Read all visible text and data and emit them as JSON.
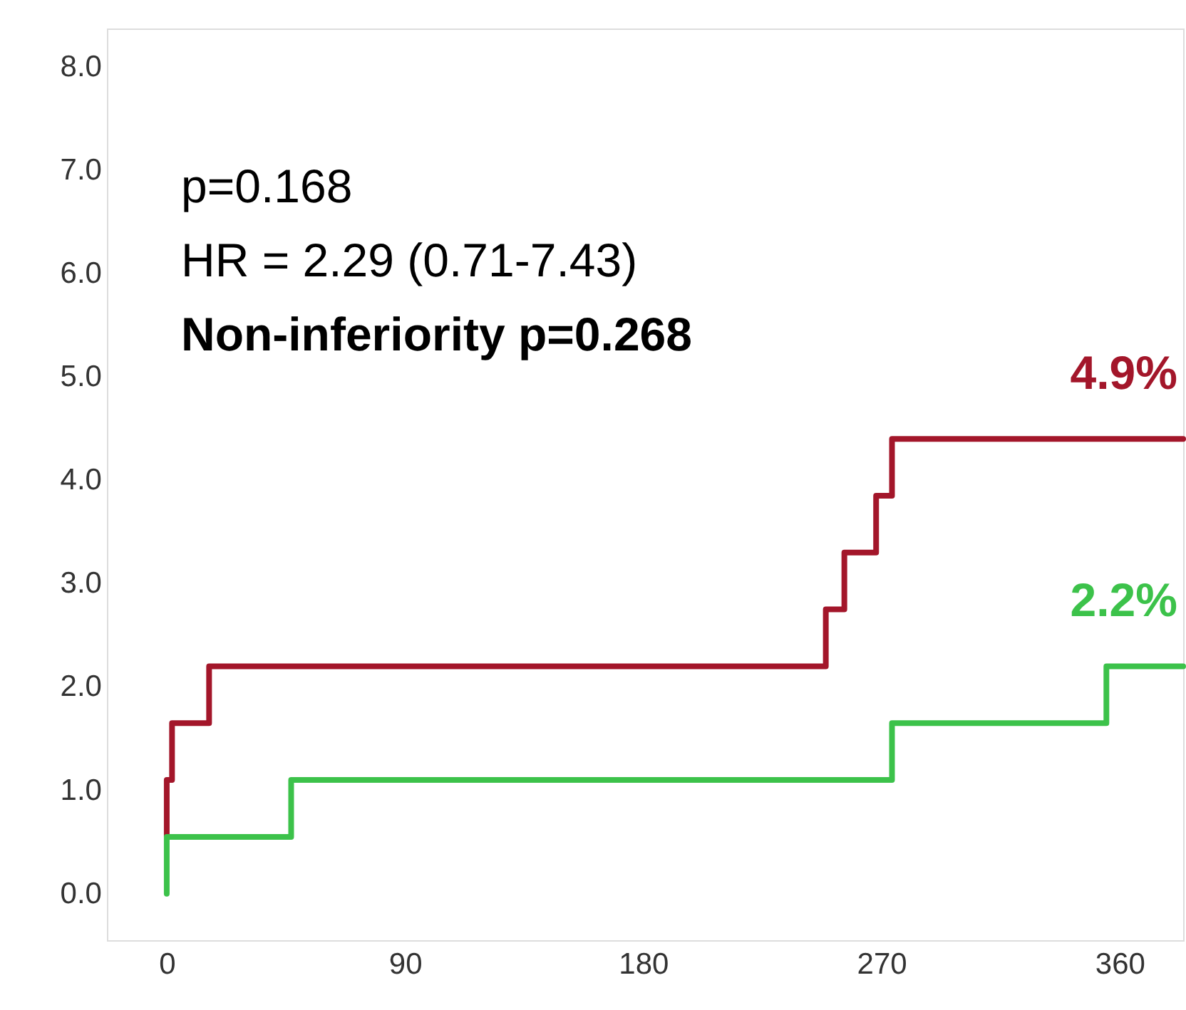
{
  "chart_data": {
    "type": "step",
    "series": [
      {
        "color": "#a3162a",
        "x": [
          0,
          0,
          2,
          16,
          249,
          256,
          268,
          274,
          384
        ],
        "values": [
          0.55,
          1.1,
          1.65,
          2.2,
          2.75,
          3.3,
          3.85,
          4.4,
          4.4
        ]
      },
      {
        "color": "#3cc24a",
        "x": [
          0,
          0,
          47,
          274,
          355,
          384
        ],
        "values": [
          0,
          0.55,
          1.1,
          1.65,
          2.2,
          2.2
        ]
      }
    ],
    "xlim": [
      -22.6,
      384
    ],
    "xticks": [
      0,
      90,
      180,
      270,
      360
    ],
    "ylim": [
      -0.45,
      8.37
    ],
    "yticks": [
      {
        "value": 0,
        "label": "0.0"
      },
      {
        "value": 1,
        "label": "1.0"
      },
      {
        "value": 2,
        "label": "2.0"
      },
      {
        "value": 3,
        "label": "3.0"
      },
      {
        "value": 4,
        "label": "4.0"
      },
      {
        "value": 5,
        "label": "5.0"
      },
      {
        "value": 6,
        "label": "6.0"
      },
      {
        "value": 7,
        "label": "7.0"
      },
      {
        "value": 8,
        "label": "8.0"
      }
    ],
    "annotations": [
      "p=0.168",
      "HR = 2.29 (0.71-7.43)",
      "Non-inferiority p=0.268",
      {
        "text": "4.9%",
        "x": 384,
        "y": 4.4
      },
      {
        "text": "2.2%",
        "x": 384,
        "y": 2.2
      }
    ],
    "grid": false,
    "line_style": "solid",
    "marker": "none"
  }
}
